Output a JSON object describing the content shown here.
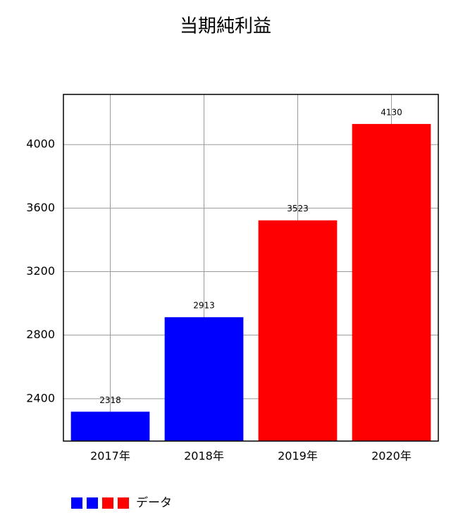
{
  "chart_data": {
    "type": "bar",
    "title": "当期純利益",
    "categories": [
      "2017年",
      "2018年",
      "2019年",
      "2020年"
    ],
    "series": [
      {
        "name": "データ",
        "colors": [
          "#0000ff",
          "#0000ff",
          "#ff0000",
          "#ff0000"
        ],
        "values": [
          2318,
          2913,
          3523,
          4130
        ]
      }
    ],
    "ylim": [
      2133,
      4316
    ],
    "yticks": [
      2400,
      2800,
      3200,
      3600,
      4000
    ],
    "grid": true,
    "show_value_labels": true
  }
}
